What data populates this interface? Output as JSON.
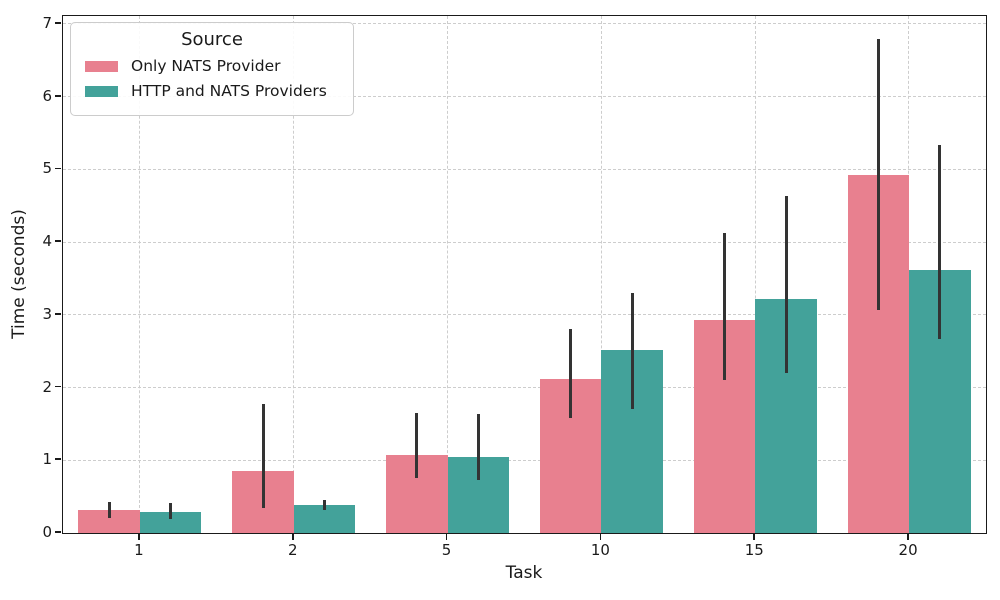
{
  "chart_data": {
    "type": "bar",
    "title": "",
    "xlabel": "Task",
    "ylabel": "Time (seconds)",
    "categories": [
      "1",
      "2",
      "5",
      "10",
      "15",
      "20"
    ],
    "series": [
      {
        "name": "Only NATS Provider",
        "color": "#e8808f",
        "values": [
          0.31,
          0.85,
          1.07,
          2.12,
          2.93,
          4.92
        ],
        "err_low": [
          0.21,
          0.34,
          0.75,
          1.58,
          2.1,
          3.07
        ],
        "err_high": [
          0.43,
          1.78,
          1.65,
          2.81,
          4.12,
          6.8
        ]
      },
      {
        "name": "HTTP and NATS Providers",
        "color": "#43a29a",
        "values": [
          0.29,
          0.38,
          1.04,
          2.52,
          3.22,
          3.62
        ],
        "err_low": [
          0.19,
          0.31,
          0.73,
          1.7,
          2.2,
          2.67
        ],
        "err_high": [
          0.41,
          0.46,
          1.64,
          3.3,
          4.64,
          5.33
        ]
      }
    ],
    "legend": {
      "title": "Source",
      "position": "upper-left"
    },
    "ylim": [
      0,
      7.11
    ],
    "yticks": [
      0,
      1,
      2,
      3,
      4,
      5,
      6,
      7
    ],
    "grid": {
      "show": true,
      "style": "dashed",
      "color": "#cdcdcd",
      "axes": "both"
    },
    "error_bar_color": "#333333",
    "spine_color": "#1a1a1a",
    "background": "#ffffff"
  }
}
